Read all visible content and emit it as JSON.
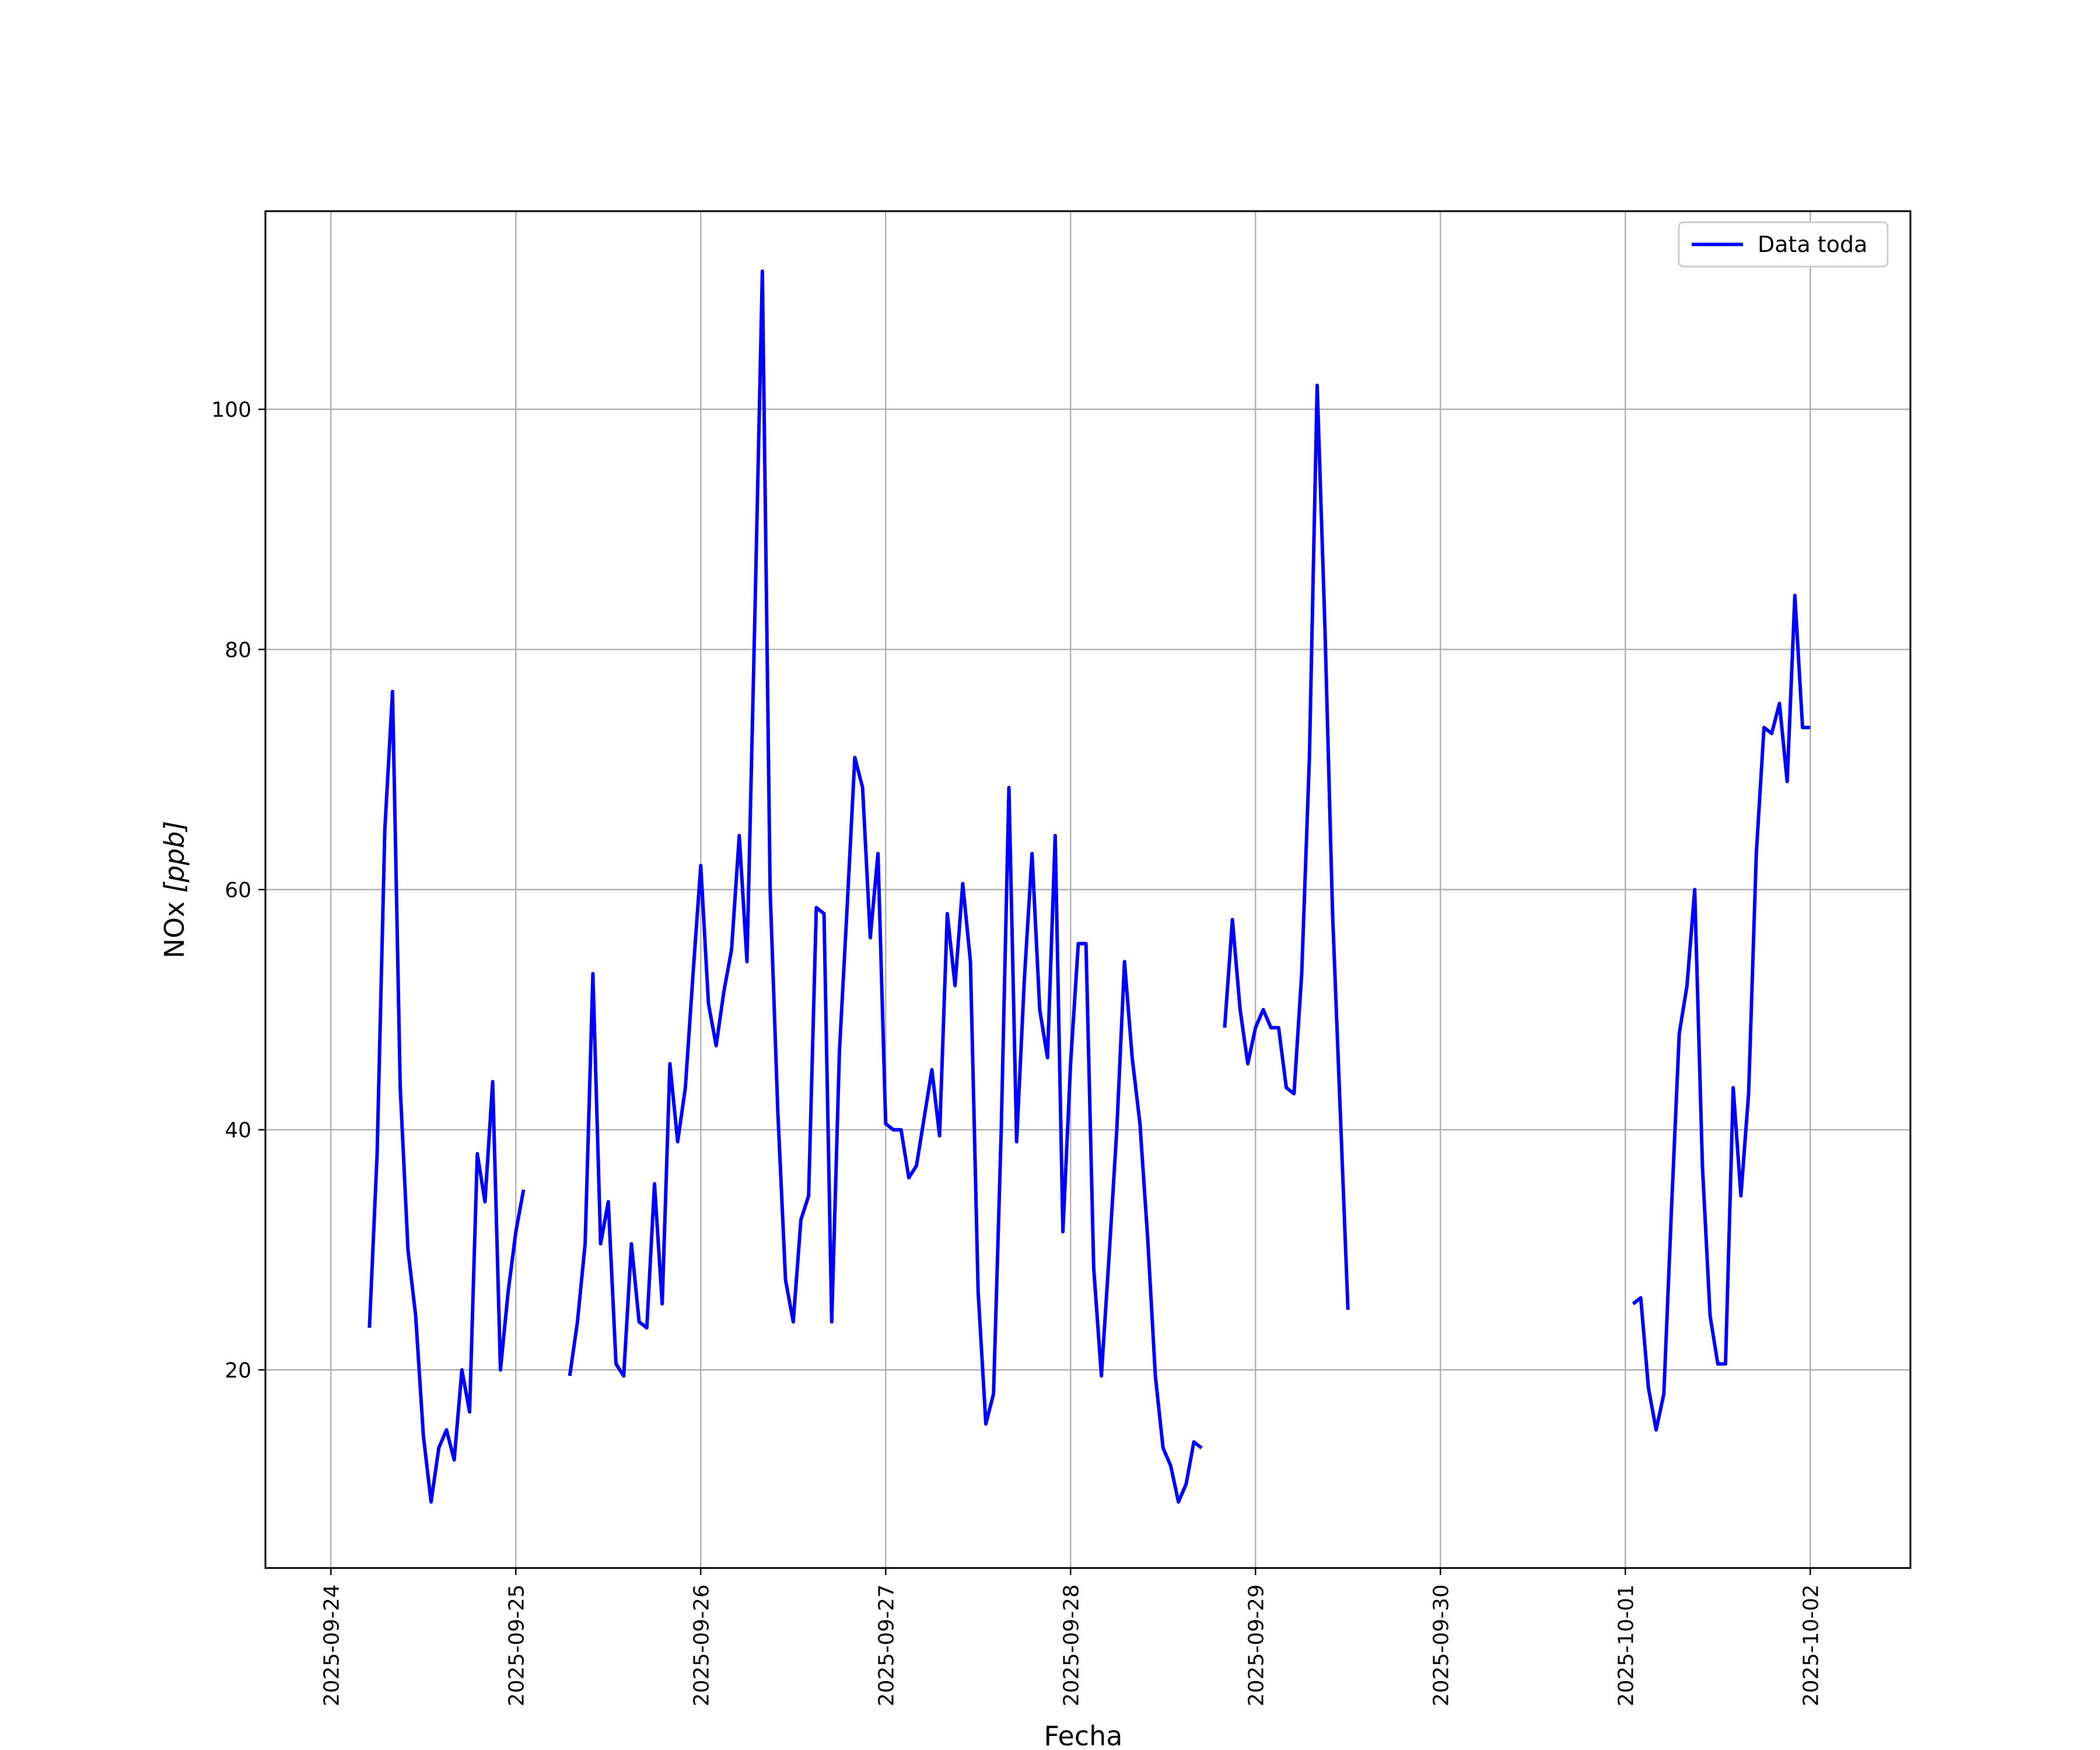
{
  "chart_data": {
    "type": "line",
    "xlabel": "Fecha",
    "ylabel_main": "NOx ",
    "ylabel_unit": "[ppb]",
    "xlim": [
      "2025-09-23T15:30",
      "2025-10-02T13:00"
    ],
    "ylim": [
      3.5,
      116.5
    ],
    "grid": true,
    "legend_position": "top-right",
    "x_ticks": [
      "2025-09-24",
      "2025-09-25",
      "2025-09-26",
      "2025-09-27",
      "2025-09-28",
      "2025-09-29",
      "2025-09-30",
      "2025-10-01",
      "2025-10-02"
    ],
    "y_ticks": [
      20,
      40,
      60,
      80,
      100
    ],
    "series": [
      {
        "name": "Data toda",
        "color": "#0000ff",
        "segments": [
          [
            [
              "2025-09-24T05:00",
              23.5
            ],
            [
              "2025-09-24T06:00",
              38
            ],
            [
              "2025-09-24T07:00",
              65
            ],
            [
              "2025-09-24T08:00",
              76.5
            ],
            [
              "2025-09-24T09:00",
              43.5
            ],
            [
              "2025-09-24T10:00",
              30
            ],
            [
              "2025-09-24T11:00",
              24.5
            ],
            [
              "2025-09-24T12:00",
              14.5
            ],
            [
              "2025-09-24T13:00",
              9
            ],
            [
              "2025-09-24T14:00",
              13.5
            ],
            [
              "2025-09-24T15:00",
              15
            ],
            [
              "2025-09-24T16:00",
              12.5
            ],
            [
              "2025-09-24T17:00",
              20
            ],
            [
              "2025-09-24T18:00",
              16.5
            ],
            [
              "2025-09-24T19:00",
              38
            ],
            [
              "2025-09-24T20:00",
              34
            ],
            [
              "2025-09-24T21:00",
              44
            ],
            [
              "2025-09-24T22:00",
              20
            ],
            [
              "2025-09-24T23:00",
              26.5
            ],
            [
              "2025-09-25T00:00",
              31.5
            ],
            [
              "2025-09-25T01:00",
              35
            ]
          ],
          [
            [
              "2025-09-25T07:00",
              19.5
            ],
            [
              "2025-09-25T08:00",
              24
            ],
            [
              "2025-09-25T09:00",
              30.5
            ],
            [
              "2025-09-25T10:00",
              53
            ],
            [
              "2025-09-25T11:00",
              30.5
            ],
            [
              "2025-09-25T12:00",
              34
            ],
            [
              "2025-09-25T13:00",
              20.5
            ],
            [
              "2025-09-25T14:00",
              19.5
            ],
            [
              "2025-09-25T15:00",
              30.5
            ],
            [
              "2025-09-25T16:00",
              24
            ],
            [
              "2025-09-25T17:00",
              23.5
            ],
            [
              "2025-09-25T18:00",
              35.5
            ],
            [
              "2025-09-25T19:00",
              25.5
            ],
            [
              "2025-09-25T20:00",
              45.5
            ],
            [
              "2025-09-25T21:00",
              39
            ],
            [
              "2025-09-25T22:00",
              43.5
            ],
            [
              "2025-09-25T23:00",
              53
            ],
            [
              "2025-09-26T00:00",
              62
            ],
            [
              "2025-09-26T01:00",
              50.5
            ],
            [
              "2025-09-26T02:00",
              47
            ],
            [
              "2025-09-26T03:00",
              51.5
            ],
            [
              "2025-09-26T04:00",
              55
            ],
            [
              "2025-09-26T05:00",
              64.5
            ],
            [
              "2025-09-26T06:00",
              54
            ],
            [
              "2025-09-26T07:00",
              82
            ],
            [
              "2025-09-26T08:00",
              111.5
            ],
            [
              "2025-09-26T09:00",
              60
            ],
            [
              "2025-09-26T10:00",
              41.5
            ],
            [
              "2025-09-26T11:00",
              27.5
            ],
            [
              "2025-09-26T12:00",
              24
            ],
            [
              "2025-09-26T13:00",
              32.5
            ],
            [
              "2025-09-26T14:00",
              34.5
            ],
            [
              "2025-09-26T15:00",
              58.5
            ],
            [
              "2025-09-26T16:00",
              58
            ],
            [
              "2025-09-26T17:00",
              24
            ],
            [
              "2025-09-26T18:00",
              46.5
            ],
            [
              "2025-09-26T19:00",
              58.5
            ],
            [
              "2025-09-26T20:00",
              71
            ],
            [
              "2025-09-26T21:00",
              68.5
            ],
            [
              "2025-09-26T22:00",
              56
            ],
            [
              "2025-09-26T23:00",
              63
            ],
            [
              "2025-09-27T00:00",
              40.5
            ],
            [
              "2025-09-27T01:00",
              40
            ],
            [
              "2025-09-27T02:00",
              40
            ],
            [
              "2025-09-27T03:00",
              36
            ],
            [
              "2025-09-27T04:00",
              37
            ],
            [
              "2025-09-27T05:00",
              41
            ],
            [
              "2025-09-27T06:00",
              45
            ],
            [
              "2025-09-27T07:00",
              39.5
            ],
            [
              "2025-09-27T08:00",
              58
            ],
            [
              "2025-09-27T09:00",
              52
            ],
            [
              "2025-09-27T10:00",
              60.5
            ],
            [
              "2025-09-27T11:00",
              54
            ],
            [
              "2025-09-27T12:00",
              26.5
            ],
            [
              "2025-09-27T13:00",
              15.5
            ],
            [
              "2025-09-27T14:00",
              18
            ],
            [
              "2025-09-27T15:00",
              40
            ],
            [
              "2025-09-27T16:00",
              68.5
            ],
            [
              "2025-09-27T17:00",
              39
            ],
            [
              "2025-09-27T18:00",
              52.5
            ],
            [
              "2025-09-27T19:00",
              63
            ],
            [
              "2025-09-27T20:00",
              50
            ],
            [
              "2025-09-27T21:00",
              46
            ],
            [
              "2025-09-27T22:00",
              64.5
            ],
            [
              "2025-09-27T23:00",
              31.5
            ],
            [
              "2025-09-28T00:00",
              45.5
            ],
            [
              "2025-09-28T01:00",
              55.5
            ],
            [
              "2025-09-28T02:00",
              55.5
            ],
            [
              "2025-09-28T03:00",
              28.5
            ],
            [
              "2025-09-28T04:00",
              19.5
            ],
            [
              "2025-09-28T05:00",
              29.5
            ],
            [
              "2025-09-28T06:00",
              40
            ],
            [
              "2025-09-28T07:00",
              54
            ],
            [
              "2025-09-28T08:00",
              46
            ],
            [
              "2025-09-28T09:00",
              40.5
            ],
            [
              "2025-09-28T10:00",
              31
            ],
            [
              "2025-09-28T11:00",
              19.5
            ],
            [
              "2025-09-28T12:00",
              13.5
            ],
            [
              "2025-09-28T13:00",
              12
            ],
            [
              "2025-09-28T14:00",
              9
            ],
            [
              "2025-09-28T15:00",
              10.5
            ],
            [
              "2025-09-28T16:00",
              14
            ],
            [
              "2025-09-28T17:00",
              13.5
            ]
          ],
          [
            [
              "2025-09-28T20:00",
              48.5
            ],
            [
              "2025-09-28T21:00",
              57.5
            ],
            [
              "2025-09-28T22:00",
              50
            ],
            [
              "2025-09-28T23:00",
              45.5
            ],
            [
              "2025-09-29T00:00",
              48.5
            ],
            [
              "2025-09-29T01:00",
              50
            ],
            [
              "2025-09-29T02:00",
              48.5
            ],
            [
              "2025-09-29T03:00",
              48.5
            ],
            [
              "2025-09-29T04:00",
              43.5
            ],
            [
              "2025-09-29T05:00",
              43
            ],
            [
              "2025-09-29T06:00",
              53
            ],
            [
              "2025-09-29T07:00",
              71
            ],
            [
              "2025-09-29T08:00",
              102
            ],
            [
              "2025-09-29T09:00",
              82
            ],
            [
              "2025-09-29T10:00",
              58
            ],
            [
              "2025-09-29T11:00",
              41.5
            ],
            [
              "2025-09-29T12:00",
              25
            ]
          ],
          [
            [
              "2025-10-01T01:00",
              25.5
            ],
            [
              "2025-10-01T02:00",
              26
            ],
            [
              "2025-10-01T03:00",
              18.5
            ],
            [
              "2025-10-01T04:00",
              15
            ],
            [
              "2025-10-01T05:00",
              18
            ],
            [
              "2025-10-01T06:00",
              33.5
            ],
            [
              "2025-10-01T07:00",
              48
            ],
            [
              "2025-10-01T08:00",
              52
            ],
            [
              "2025-10-01T09:00",
              60
            ],
            [
              "2025-10-01T10:00",
              37
            ],
            [
              "2025-10-01T11:00",
              24.5
            ],
            [
              "2025-10-01T12:00",
              20.5
            ],
            [
              "2025-10-01T13:00",
              20.5
            ],
            [
              "2025-10-01T14:00",
              43.5
            ],
            [
              "2025-10-01T15:00",
              34.5
            ],
            [
              "2025-10-01T16:00",
              43
            ],
            [
              "2025-10-01T17:00",
              63
            ],
            [
              "2025-10-01T18:00",
              73.5
            ],
            [
              "2025-10-01T19:00",
              73
            ],
            [
              "2025-10-01T20:00",
              75.5
            ],
            [
              "2025-10-01T21:00",
              69
            ],
            [
              "2025-10-01T22:00",
              84.5
            ],
            [
              "2025-10-01T23:00",
              73.5
            ],
            [
              "2025-10-02T00:00",
              73.5
            ]
          ]
        ]
      }
    ]
  }
}
